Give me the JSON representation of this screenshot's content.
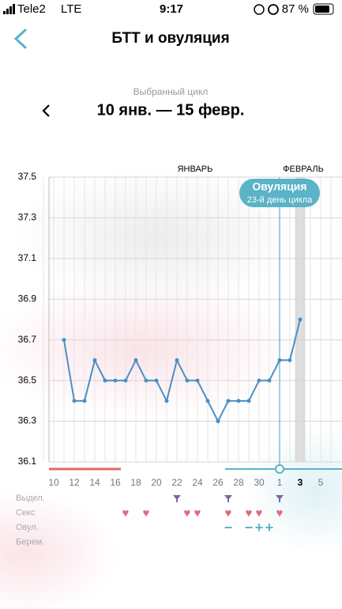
{
  "status_bar": {
    "carrier": "Tele2",
    "network": "LTE",
    "time": "9:17",
    "battery": "87 %"
  },
  "header": {
    "title": "БТТ и овуляция"
  },
  "cycle": {
    "caption": "Выбранный цикл",
    "range": "10 янв. — 15 февр."
  },
  "chart_data": {
    "type": "line",
    "color": "#4a8fc4",
    "categories": [
      10,
      null,
      12,
      null,
      14,
      null,
      16,
      null,
      18,
      null,
      20,
      null,
      22,
      null,
      24,
      null,
      26,
      null,
      28,
      null,
      30,
      null,
      1,
      null,
      3,
      null,
      5
    ],
    "values": [
      null,
      36.7,
      36.4,
      36.4,
      36.6,
      36.5,
      36.5,
      36.5,
      36.6,
      36.5,
      36.5,
      36.4,
      36.6,
      36.5,
      36.5,
      36.4,
      36.3,
      36.4,
      36.4,
      36.4,
      36.5,
      36.5,
      36.6,
      36.6,
      36.8,
      null,
      null
    ],
    "ylim": [
      36.1,
      37.5
    ],
    "yticks": [
      36.1,
      36.3,
      36.5,
      36.7,
      36.9,
      37.1,
      37.3,
      37.5
    ],
    "grid": true,
    "today": 3,
    "months": [
      "ЯНВАРЬ",
      "ФЕВРАЛЬ"
    ],
    "ovulation": {
      "label": "Овуляция",
      "sublabel": "23-й день цикла",
      "category": 1
    },
    "rows": [
      {
        "label": "Выдел.",
        "marks": [
          null,
          null,
          null,
          null,
          null,
          null,
          null,
          null,
          null,
          null,
          null,
          null,
          true,
          null,
          null,
          null,
          null,
          true,
          null,
          null,
          null,
          null,
          true,
          null,
          null,
          null,
          null
        ]
      },
      {
        "label": "Секс",
        "marks": [
          null,
          null,
          null,
          null,
          null,
          null,
          null,
          "♥",
          null,
          "♥",
          null,
          null,
          null,
          "♥",
          "♥",
          null,
          null,
          "♥",
          null,
          "♥",
          "♥",
          null,
          "♥",
          null,
          null,
          null,
          null
        ]
      },
      {
        "label": "Овул.",
        "marks": [
          null,
          null,
          null,
          null,
          null,
          null,
          null,
          null,
          null,
          null,
          null,
          null,
          null,
          null,
          null,
          null,
          null,
          "−",
          null,
          "−",
          "+",
          "+",
          null,
          null,
          null,
          null,
          null
        ]
      },
      {
        "label": "Берем.",
        "marks": [
          null,
          null,
          null,
          null,
          null,
          null,
          null,
          null,
          null,
          null,
          null,
          null,
          null,
          null,
          null,
          null,
          null,
          null,
          null,
          null,
          null,
          null,
          null,
          null,
          null,
          null,
          null
        ]
      }
    ]
  }
}
